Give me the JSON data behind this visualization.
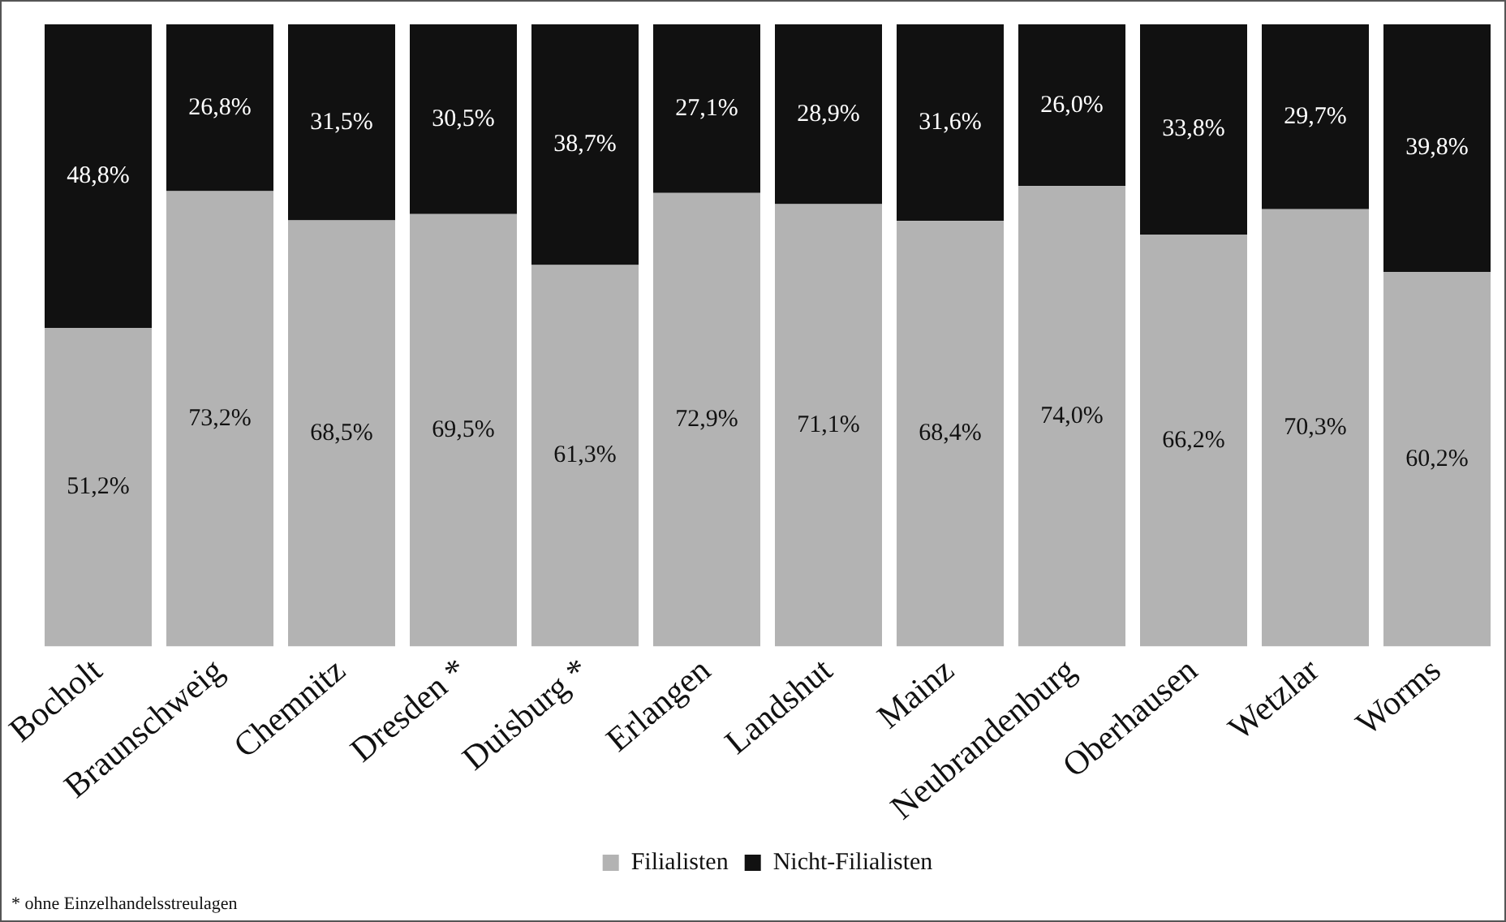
{
  "chart_data": {
    "type": "bar",
    "stacked": true,
    "categories": [
      "Bocholt",
      "Braunschweig",
      "Chemnitz",
      "Dresden *",
      "Duisburg *",
      "Erlangen",
      "Landshut",
      "Mainz",
      "Neubrandenburg",
      "Oberhausen",
      "Wetzlar",
      "Worms"
    ],
    "series": [
      {
        "name": "Filialisten",
        "color": "#b3b3b3",
        "values": [
          51.2,
          73.2,
          68.5,
          69.5,
          61.3,
          72.9,
          71.1,
          68.4,
          74.0,
          66.2,
          70.3,
          60.2
        ],
        "value_labels": [
          "51,2%",
          "73,2%",
          "68,5%",
          "69,5%",
          "61,3%",
          "72,9%",
          "71,1%",
          "68,4%",
          "74,0%",
          "66,2%",
          "70,3%",
          "60,2%"
        ]
      },
      {
        "name": "Nicht-Filialisten",
        "color": "#111111",
        "values": [
          48.8,
          26.8,
          31.5,
          30.5,
          38.7,
          27.1,
          28.9,
          31.6,
          26.0,
          33.8,
          29.7,
          39.8
        ],
        "value_labels": [
          "48,8%",
          "26,8%",
          "31,5%",
          "30,5%",
          "38,7%",
          "27,1%",
          "28,9%",
          "31,6%",
          "26,0%",
          "33,8%",
          "29,7%",
          "39,8%"
        ]
      }
    ],
    "legend": "bottom",
    "grid": false,
    "tick_labels": "x",
    "annotations": [
      "* ohne Einzelhandelsstreulagen"
    ]
  }
}
